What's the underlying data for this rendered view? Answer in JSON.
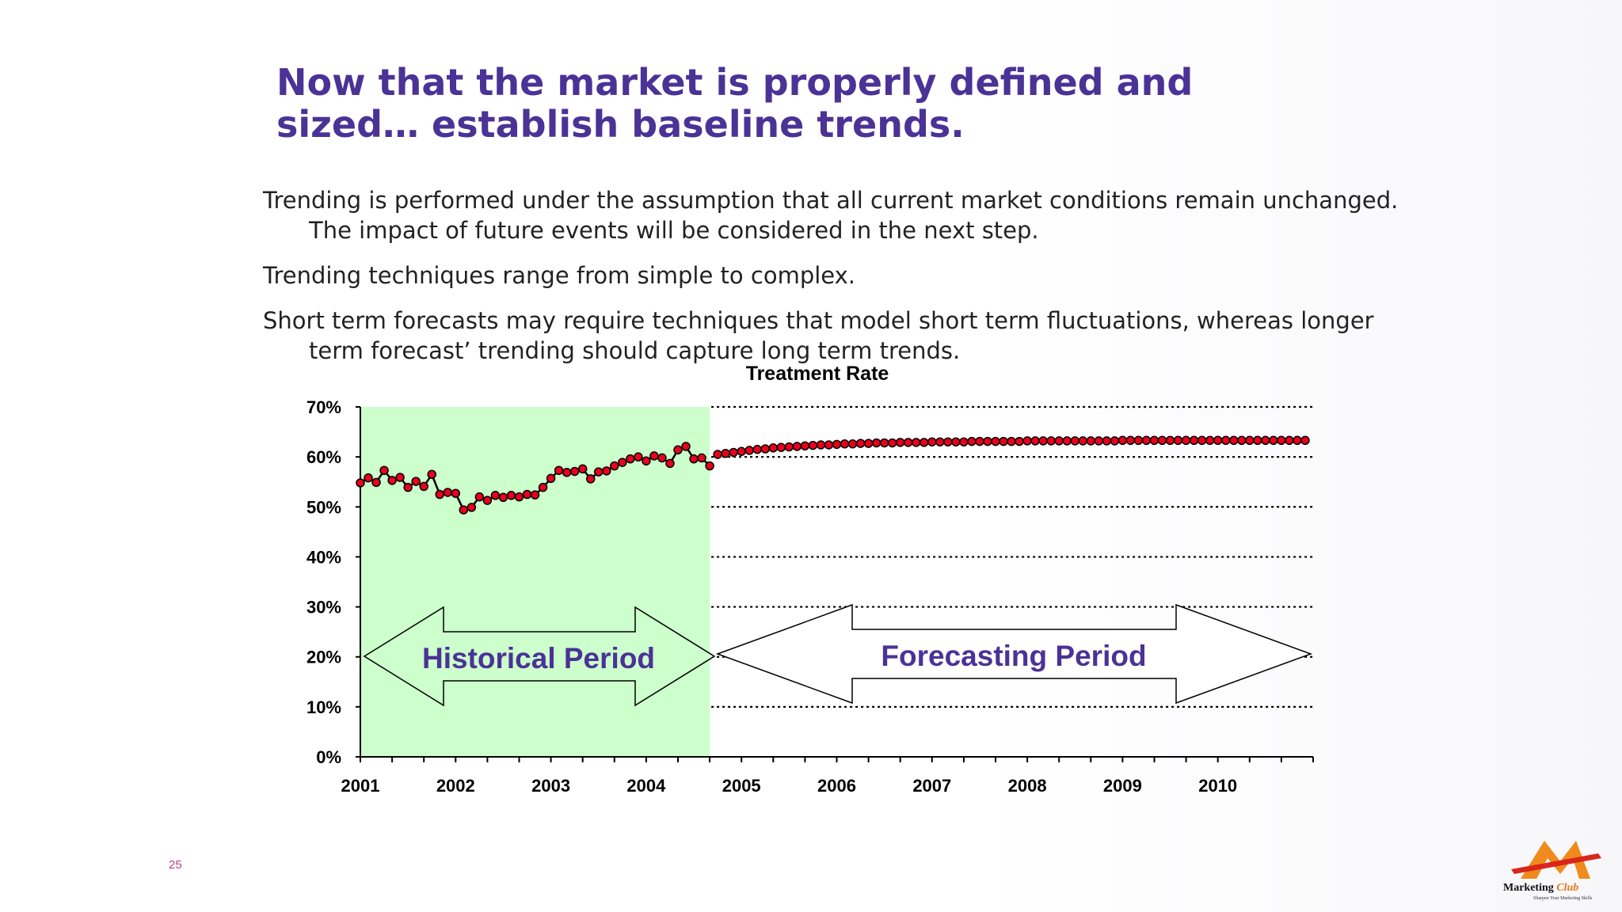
{
  "slide": {
    "title_line1": "Now that the market is properly defined and",
    "title_line2": "sized… establish baseline trends.",
    "bullets": [
      "Trending is performed under the assumption that all current market conditions remain unchanged.  The impact of future events will be considered in the next step.",
      "Trending techniques range from simple to complex.",
      "Short term forecasts may require techniques that model short term fluctuations, whereas longer term forecast’ trending should capture long term trends."
    ],
    "page_number": "25",
    "logo": {
      "brand": "Marketing",
      "club": "Club",
      "tagline": "Sharpen Your Marketing Skills"
    }
  },
  "colors": {
    "title": "#4b3296",
    "historical_fill": "#ccffcc",
    "marker": "#e8001c",
    "line": "#000000"
  },
  "chart_data": {
    "type": "line",
    "title": "Treatment Rate",
    "xlabel": "",
    "ylabel": "",
    "ylim": [
      0,
      70
    ],
    "y_ticks": [
      "0%",
      "10%",
      "20%",
      "30%",
      "40%",
      "50%",
      "60%",
      "70%"
    ],
    "x_tick_labels": [
      "2001",
      "2002",
      "2003",
      "2004",
      "2005",
      "2006",
      "2007",
      "2008",
      "2009",
      "2010"
    ],
    "x_start_year": 2001,
    "months_total": 120,
    "grid": "dotted horizontal lines in forecast region",
    "regions": [
      {
        "name": "Historical Period",
        "start_month": 0,
        "end_month": 44
      },
      {
        "name": "Forecasting Period",
        "start_month": 44,
        "end_month": 120
      }
    ],
    "series": [
      {
        "name": "Historical",
        "values": [
          54.8,
          55.8,
          54.9,
          57.3,
          55.3,
          55.9,
          53.9,
          55.1,
          54.1,
          56.5,
          52.5,
          52.9,
          52.7,
          49.4,
          49.9,
          52.0,
          51.3,
          52.3,
          51.9,
          52.3,
          52.0,
          52.5,
          52.4,
          53.9,
          55.7,
          57.3,
          56.9,
          57.1,
          57.6,
          55.6,
          57.0,
          57.2,
          58.2,
          58.9,
          59.6,
          60.0,
          59.2,
          60.2,
          59.8,
          58.7,
          61.4,
          62.1,
          59.6,
          59.8,
          58.2
        ]
      },
      {
        "name": "Forecast",
        "values": [
          60.5,
          60.7,
          60.9,
          61.1,
          61.3,
          61.5,
          61.6,
          61.8,
          61.9,
          62.0,
          62.1,
          62.2,
          62.3,
          62.4,
          62.4,
          62.5,
          62.6,
          62.6,
          62.7,
          62.7,
          62.8,
          62.8,
          62.8,
          62.9,
          62.9,
          62.9,
          62.9,
          63.0,
          63.0,
          63.0,
          63.0,
          63.0,
          63.1,
          63.1,
          63.1,
          63.1,
          63.1,
          63.1,
          63.1,
          63.2,
          63.2,
          63.2,
          63.2,
          63.2,
          63.2,
          63.2,
          63.2,
          63.2,
          63.2,
          63.2,
          63.2,
          63.3,
          63.3,
          63.3,
          63.3,
          63.3,
          63.3,
          63.3,
          63.3,
          63.3,
          63.3,
          63.3,
          63.3,
          63.3,
          63.3,
          63.3,
          63.3,
          63.3,
          63.3,
          63.3,
          63.3,
          63.3,
          63.3,
          63.3,
          63.3
        ]
      }
    ]
  }
}
